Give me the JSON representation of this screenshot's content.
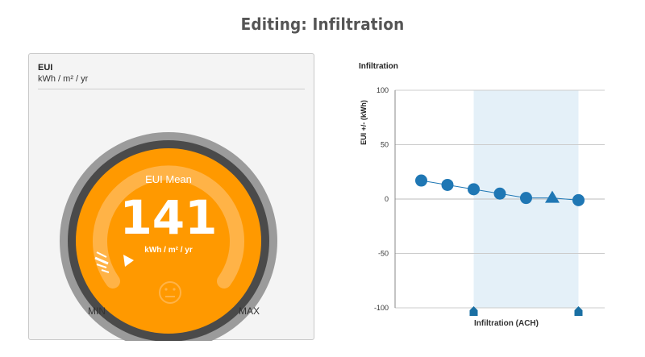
{
  "page": {
    "title": "Editing: Infiltration"
  },
  "gauge": {
    "title": "EUI",
    "units": "kWh / m² / yr",
    "center_label": "EUI Mean",
    "value": "141",
    "value_units": "kWh / m² / yr",
    "min_label": "MIN",
    "max_label": "MAX",
    "indicator_icon": "neutral-face-icon",
    "colors": {
      "fill": "#ff9900",
      "inner_ring": "#ffb347",
      "outer_ring": "#9b9b9b",
      "dark_ring": "#4a4a4a",
      "text": "#ffffff"
    }
  },
  "chart_data": {
    "type": "line",
    "title": "Infiltration",
    "xlabel": "Infiltration (ACH)",
    "ylabel": "EUI +/- (kWh)",
    "ylim": [
      -100,
      100
    ],
    "yticks": [
      100,
      50,
      0,
      -50,
      -100
    ],
    "xlim": [
      0,
      8
    ],
    "grid": true,
    "marker_color": "#1f77b4",
    "highlight_color": "#e4f0f8",
    "highlight_range": [
      3,
      7
    ],
    "range_handles": [
      3,
      7
    ],
    "current_index": 5,
    "x": [
      1,
      2,
      3,
      4,
      5,
      6,
      7
    ],
    "values": [
      17,
      13,
      9,
      5,
      1,
      1,
      -1
    ]
  }
}
